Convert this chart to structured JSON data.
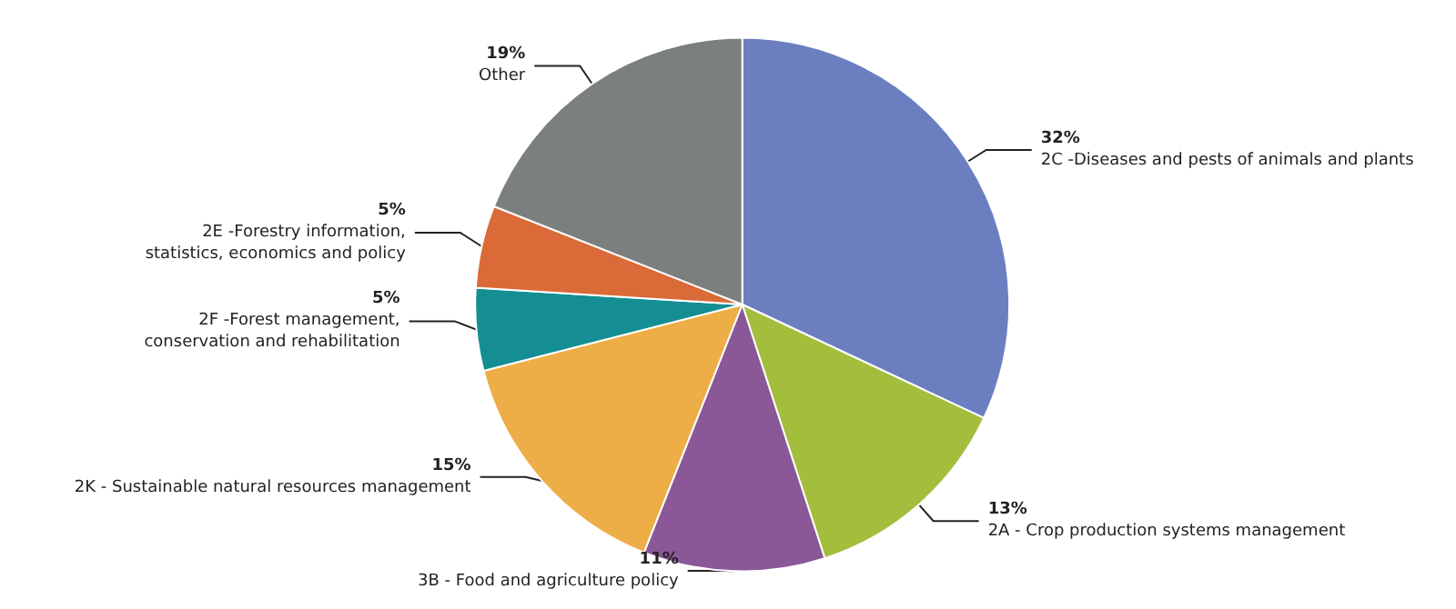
{
  "chart_data": {
    "type": "pie",
    "categories": [
      "2C -Diseases and pests of animals and plants",
      "2A - Crop production systems management",
      "3B - Food and agriculture policy",
      "2K - Sustainable natural resources management",
      "2F -Forest management,\nconservation and rehabilitation",
      "2E -Forestry information,\nstatistics, economics and policy",
      "Other"
    ],
    "values": [
      32,
      13,
      11,
      15,
      5,
      5,
      19
    ],
    "value_labels": [
      "32%",
      "13%",
      "11%",
      "15%",
      "5%",
      "5%",
      "19%"
    ],
    "colors": [
      "#6b7fc0",
      "#a3bd3c",
      "#8a5797",
      "#edae47",
      "#148e93",
      "#da6a38",
      "#7b7f7d"
    ],
    "legend": false
  }
}
